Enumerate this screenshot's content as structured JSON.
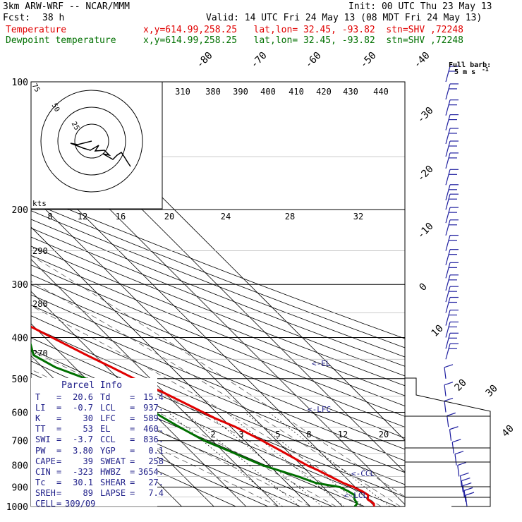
{
  "header": {
    "model": "3km ARW-WRF -- NCAR/MMM",
    "init": "Init: 00 UTC Thu 23 May 13",
    "fcst_label": "Fcst:",
    "fcst_value": "38 h",
    "valid": "Valid: 14 UTC Fri 24 May 13 (08 MDT Fri 24 May 13)",
    "temp_label": "Temperature",
    "dew_label": "Dewpoint temperature",
    "loc": "x,y=614.99,258.25   lat,lon= 32.45, -93.82  stn=SHV ,72248"
  },
  "barb_legend": {
    "line1": "Full barb:",
    "line2": "5 m s",
    "unit_exp": "-1"
  },
  "hodograph": {
    "kts_label": "kts",
    "ring_labels": [
      "75",
      "50",
      "25"
    ]
  },
  "parcel": {
    "title": "Parcel Info",
    "rows": [
      [
        "T",
        "=",
        "20.6",
        "Td",
        "=",
        "15.4"
      ],
      [
        "LI",
        "=",
        "-0.7",
        "LCL",
        "=",
        "937."
      ],
      [
        "K",
        "=",
        "30",
        "LFC",
        "=",
        "589."
      ],
      [
        "TT",
        "=",
        "53",
        "EL",
        "=",
        "460."
      ],
      [
        "SWI",
        "=",
        "-3.7",
        "CCL",
        "=",
        "836."
      ],
      [
        "PW",
        "=",
        "3.80",
        "YGP",
        "=",
        "0.1"
      ],
      [
        "CAPE",
        "=",
        "39",
        "SWEAT",
        "=",
        "258"
      ],
      [
        "CIN",
        "=",
        "-323",
        "HWBZ",
        "=",
        "3654."
      ],
      [
        "Tc",
        "=",
        "30.1",
        "SHEAR",
        "=",
        "27."
      ],
      [
        "SREH",
        "=",
        "89",
        "LAPSE",
        "=",
        "7.4"
      ],
      [
        "CELL",
        "=",
        "309/09",
        "",
        "",
        ""
      ]
    ]
  },
  "level_markers": [
    "<-EL",
    "<-LFC",
    "<-CCL",
    "<-LCL"
  ],
  "colors": {
    "temperature": "#e00000",
    "dewpoint": "#007000",
    "wind": "#2020a0",
    "moist_adiabat": "#555555"
  },
  "chart_data": {
    "type": "skew-t",
    "pressure_levels": [
      100,
      200,
      300,
      400,
      500,
      600,
      700,
      800,
      900,
      1000
    ],
    "y_scale": "log pressure (hPa)",
    "isotherm_labels": [
      "-80",
      "-70",
      "-60",
      "-50",
      "-40",
      "-30",
      "-20",
      "-10",
      "0",
      "10",
      "20",
      "30",
      "40"
    ],
    "theta_labels": [
      "310",
      "380",
      "390",
      "400",
      "410",
      "420",
      "430",
      "440"
    ],
    "mixing_ratio_labels_top": [
      "8",
      "12",
      "16",
      "20",
      "24",
      "28",
      "32"
    ],
    "mixing_ratio_labels_bottom": [
      "2",
      "3",
      "5",
      "8",
      "12",
      "20"
    ],
    "side_labels": [
      "290",
      "280",
      "270"
    ],
    "series": [
      {
        "name": "Temperature",
        "pressure": [
          1000,
          985,
          962,
          940,
          920,
          900,
          880,
          850,
          820,
          800,
          770,
          740,
          700,
          650,
          620,
          580,
          540,
          500,
          470,
          440,
          400,
          370,
          340,
          300,
          270,
          250,
          220,
          200,
          180,
          160,
          150,
          140,
          125,
          112,
          100
        ],
        "temperature": [
          19.8,
          20.6,
          20.0,
          21.5,
          20.8,
          19.5,
          17.5,
          15.5,
          13.5,
          11.8,
          10.0,
          8.2,
          5.5,
          1.5,
          -2.2,
          -6.0,
          -10.2,
          -15.0,
          -18.5,
          -22.5,
          -27.8,
          -32.0,
          -36.8,
          -43.5,
          -49.0,
          -52.0,
          -57.0,
          -60.0,
          -63.0,
          -66.0,
          -67.3,
          -67.5,
          -69.0,
          -70.5,
          -71.0
        ]
      },
      {
        "name": "Dewpoint temperature",
        "pressure": [
          1000,
          985,
          960,
          940,
          920,
          900,
          880,
          850,
          820,
          800,
          770,
          740,
          700,
          650,
          620,
          580,
          540,
          500,
          470,
          440,
          400,
          370,
          340,
          300,
          270,
          250,
          220,
          200,
          180,
          160,
          150,
          140,
          125,
          112,
          100
        ],
        "temperature": [
          13.8,
          15.4,
          16.0,
          17.3,
          16.5,
          15.2,
          9.0,
          5.5,
          1.0,
          -2.0,
          -5.0,
          -8.0,
          -12.5,
          -16.0,
          -18.0,
          -20.5,
          -25.0,
          -30.0,
          -36.0,
          -39.0,
          -35.0,
          -39.5,
          -46.0,
          -58.0,
          -66.0,
          -70.0,
          -74.5,
          -77.5,
          -80.0,
          -82.0,
          -82.5,
          -80.0,
          -78.5,
          -79.5,
          -79.5
        ]
      }
    ],
    "wind_barbs_pressure": [
      100,
      110,
      120,
      130,
      140,
      150,
      160,
      175,
      190,
      200,
      215,
      230,
      250,
      270,
      290,
      310,
      330,
      350,
      375,
      400,
      425,
      450,
      500,
      550,
      600,
      650,
      700,
      750,
      800,
      850,
      900,
      925,
      950,
      975,
      1000
    ]
  }
}
